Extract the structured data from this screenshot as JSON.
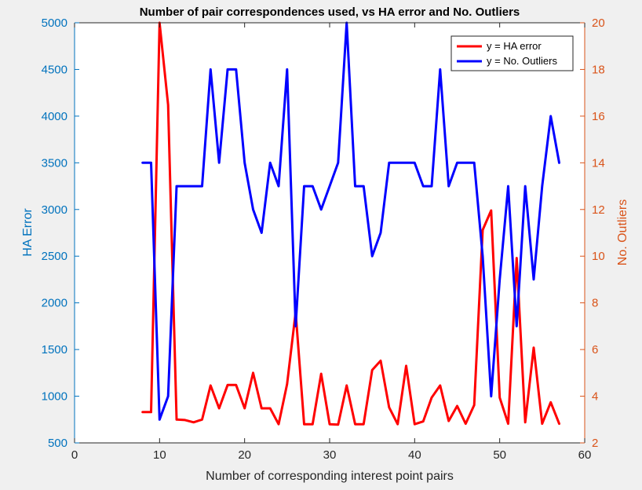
{
  "chart_data": {
    "type": "line",
    "title": "Number of pair correspondences used, vs HA error and No. Outliers",
    "xlabel": "Number of corresponding interest point pairs",
    "ylabel_left": "HA Error",
    "ylabel_right": "No. Outliers",
    "xlim": [
      0,
      60
    ],
    "ylim_left": [
      500,
      5000
    ],
    "ylim_right": [
      2,
      20
    ],
    "xticks": [
      0,
      10,
      20,
      30,
      40,
      50,
      60
    ],
    "yticks_left": [
      500,
      1000,
      1500,
      2000,
      2500,
      3000,
      3500,
      4000,
      4500,
      5000
    ],
    "yticks_right": [
      2,
      4,
      6,
      8,
      10,
      12,
      14,
      16,
      18,
      20
    ],
    "grid": false,
    "legend_position": "top-right",
    "colors": {
      "left_axis": "#0072bd",
      "right_axis": "#d95319",
      "series_red": "#ff0000",
      "series_blue": "#0000ff"
    },
    "series": [
      {
        "name": "y = HA error",
        "axis": "left",
        "color": "#ff0000",
        "x": [
          8,
          9,
          10,
          11,
          12,
          13,
          14,
          15,
          16,
          17,
          18,
          19,
          20,
          21,
          22,
          23,
          24,
          25,
          26,
          27,
          28,
          29,
          30,
          31,
          32,
          33,
          34,
          35,
          36,
          37,
          38,
          39,
          40,
          41,
          42,
          43,
          44,
          45,
          46,
          47,
          48,
          49,
          50,
          51,
          52,
          53,
          54,
          55,
          56,
          57
        ],
        "y": [
          830,
          830,
          5000,
          4120,
          750,
          745,
          720,
          750,
          1115,
          870,
          1120,
          1120,
          870,
          1250,
          870,
          870,
          700,
          1130,
          1900,
          700,
          700,
          1240,
          700,
          695,
          1115,
          700,
          700,
          1280,
          1380,
          880,
          700,
          1325,
          700,
          730,
          985,
          1115,
          735,
          895,
          705,
          905,
          2780,
          2990,
          985,
          705,
          2480,
          720,
          1520,
          705,
          935,
          705
        ]
      },
      {
        "name": "y = No. Outliers",
        "axis": "right",
        "color": "#0000ff",
        "x": [
          8,
          9,
          10,
          11,
          12,
          13,
          14,
          15,
          16,
          17,
          18,
          19,
          20,
          21,
          22,
          23,
          24,
          25,
          26,
          27,
          28,
          29,
          30,
          31,
          32,
          33,
          34,
          35,
          36,
          37,
          38,
          39,
          40,
          41,
          42,
          43,
          44,
          45,
          46,
          47,
          48,
          49,
          50,
          51,
          52,
          53,
          54,
          55,
          56,
          57
        ],
        "y": [
          14,
          14,
          3,
          4,
          13,
          13,
          13,
          13,
          18,
          14,
          18,
          18,
          14,
          12,
          11,
          14,
          13,
          18,
          7,
          13,
          13,
          12,
          13,
          14,
          20,
          13,
          13,
          10,
          11,
          14,
          14,
          14,
          14,
          13,
          13,
          18,
          13,
          14,
          14,
          14,
          10,
          4,
          9,
          13,
          7,
          13,
          9,
          13,
          16,
          14
        ]
      }
    ]
  }
}
